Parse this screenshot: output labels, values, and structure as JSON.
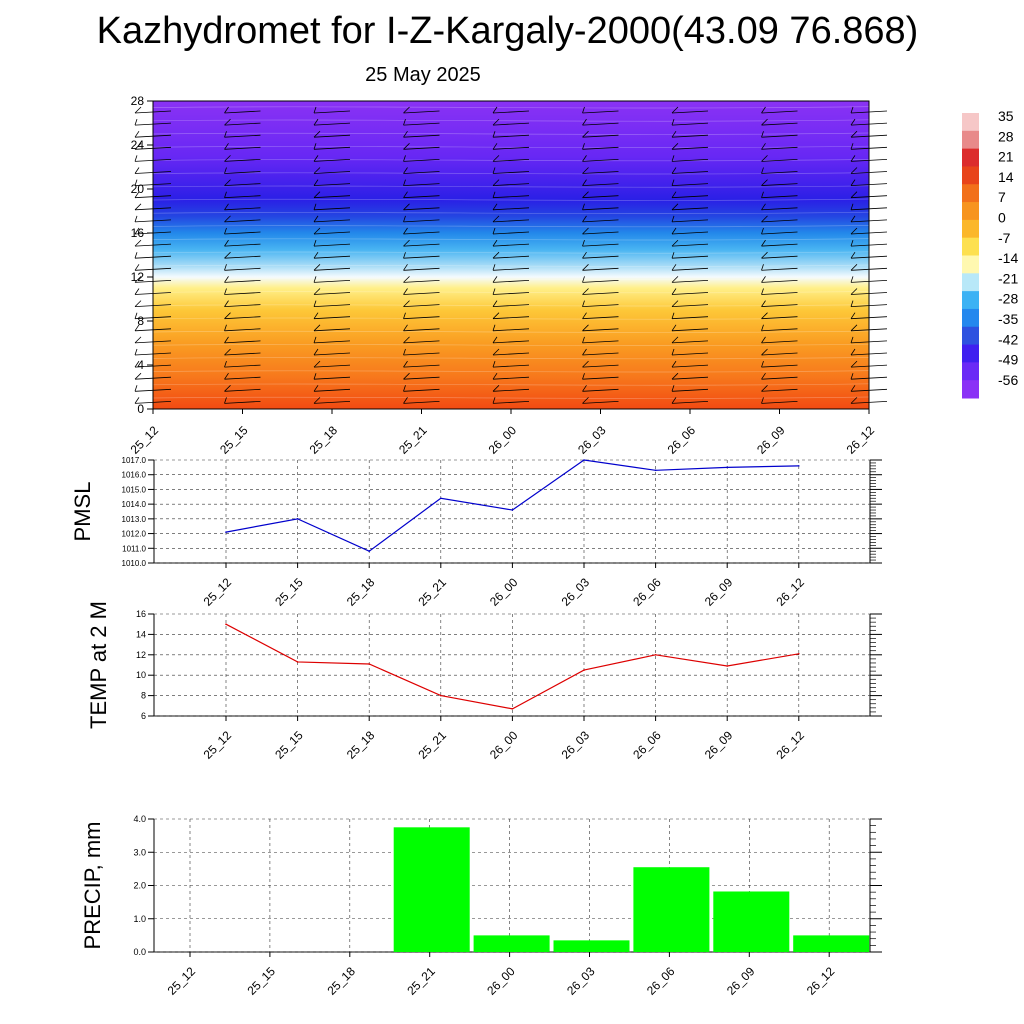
{
  "header": {
    "title": "Kazhydromet for I-Z-Kargaly-2000(43.09 76.868)",
    "date": "25 May 2025"
  },
  "colors": {
    "pmsl_line": "#0000cc",
    "temp_line": "#dd0000",
    "precip_bar": "#00ff00",
    "colorbar": [
      "#f6c7c7",
      "#e88a8a",
      "#dc2c2c",
      "#e8441a",
      "#f2701a",
      "#f7941e",
      "#fbb72a",
      "#fde050",
      "#fff8b0",
      "#b8e8f8",
      "#3cb2f4",
      "#2488ee",
      "#2e52e0",
      "#3f1ff0",
      "#6a2af6",
      "#8a32f6"
    ]
  },
  "chart_data": [
    {
      "type": "heatmap",
      "id": "vertical-profile",
      "x_categories": [
        "25_12",
        "25_15",
        "25_18",
        "25_21",
        "26_00",
        "26_03",
        "26_06",
        "26_09",
        "26_12"
      ],
      "y_ticks": [
        0,
        4,
        8,
        12,
        16,
        20,
        24,
        28
      ],
      "ylim": [
        0,
        28
      ],
      "grid": false,
      "legend_position": "right",
      "colorbar_labels": [
        "35",
        "28",
        "21",
        "14",
        "7",
        "0",
        "-7",
        "-14",
        "-21",
        "-28",
        "-35",
        "-42",
        "-49",
        "-56"
      ],
      "color_stops": [
        {
          "y": 0,
          "color": "#f24a12"
        },
        {
          "y": 3,
          "color": "#f7791c"
        },
        {
          "y": 6,
          "color": "#fa9d22"
        },
        {
          "y": 9,
          "color": "#fdc838"
        },
        {
          "y": 11,
          "color": "#fff08a"
        },
        {
          "y": 12,
          "color": "#f4fbfe"
        },
        {
          "y": 13,
          "color": "#a8dcf6"
        },
        {
          "y": 14.5,
          "color": "#48b4f2"
        },
        {
          "y": 16,
          "color": "#2388ea"
        },
        {
          "y": 17.5,
          "color": "#2446e2"
        },
        {
          "y": 19,
          "color": "#2a20e6"
        },
        {
          "y": 21,
          "color": "#4a22ee"
        },
        {
          "y": 23,
          "color": "#6828f4"
        },
        {
          "y": 28,
          "color": "#8a32f4"
        }
      ]
    },
    {
      "type": "line",
      "id": "pmsl",
      "ylabel": "PMSL",
      "categories": [
        "25_12",
        "25_15",
        "25_18",
        "25_21",
        "26_00",
        "26_03",
        "26_06",
        "26_09",
        "26_12"
      ],
      "values": [
        1012.1,
        1013.0,
        1010.8,
        1014.4,
        1013.6,
        1017.0,
        1016.3,
        1016.5,
        1016.6
      ],
      "ylim": [
        1010.0,
        1017.0
      ],
      "y_ticks": [
        "1010.0",
        "1011.0",
        "1012.0",
        "1013.0",
        "1014.0",
        "1015.0",
        "1016.0",
        "1017.0"
      ],
      "grid": true
    },
    {
      "type": "line",
      "id": "temp",
      "ylabel": "TEMP at 2 M",
      "categories": [
        "25_12",
        "25_15",
        "25_18",
        "25_21",
        "26_00",
        "26_03",
        "26_06",
        "26_09",
        "26_12"
      ],
      "values": [
        15.0,
        11.3,
        11.1,
        8.0,
        6.7,
        10.5,
        12.0,
        10.9,
        12.1
      ],
      "ylim": [
        6,
        16
      ],
      "y_ticks": [
        "6",
        "8",
        "10",
        "12",
        "14",
        "16"
      ],
      "grid": true
    },
    {
      "type": "bar",
      "id": "precip",
      "ylabel": "PRECIP, mm",
      "categories": [
        "25_12",
        "25_15",
        "25_18",
        "25_21",
        "26_00",
        "26_03",
        "26_06",
        "26_09",
        "26_12"
      ],
      "values": [
        0.0,
        0.0,
        0.0,
        3.75,
        0.5,
        0.35,
        2.55,
        1.82,
        0.5
      ],
      "ylim": [
        0.0,
        4.0
      ],
      "y_ticks": [
        "0.0",
        "1.0",
        "2.0",
        "3.0",
        "4.0"
      ],
      "grid": true
    }
  ]
}
